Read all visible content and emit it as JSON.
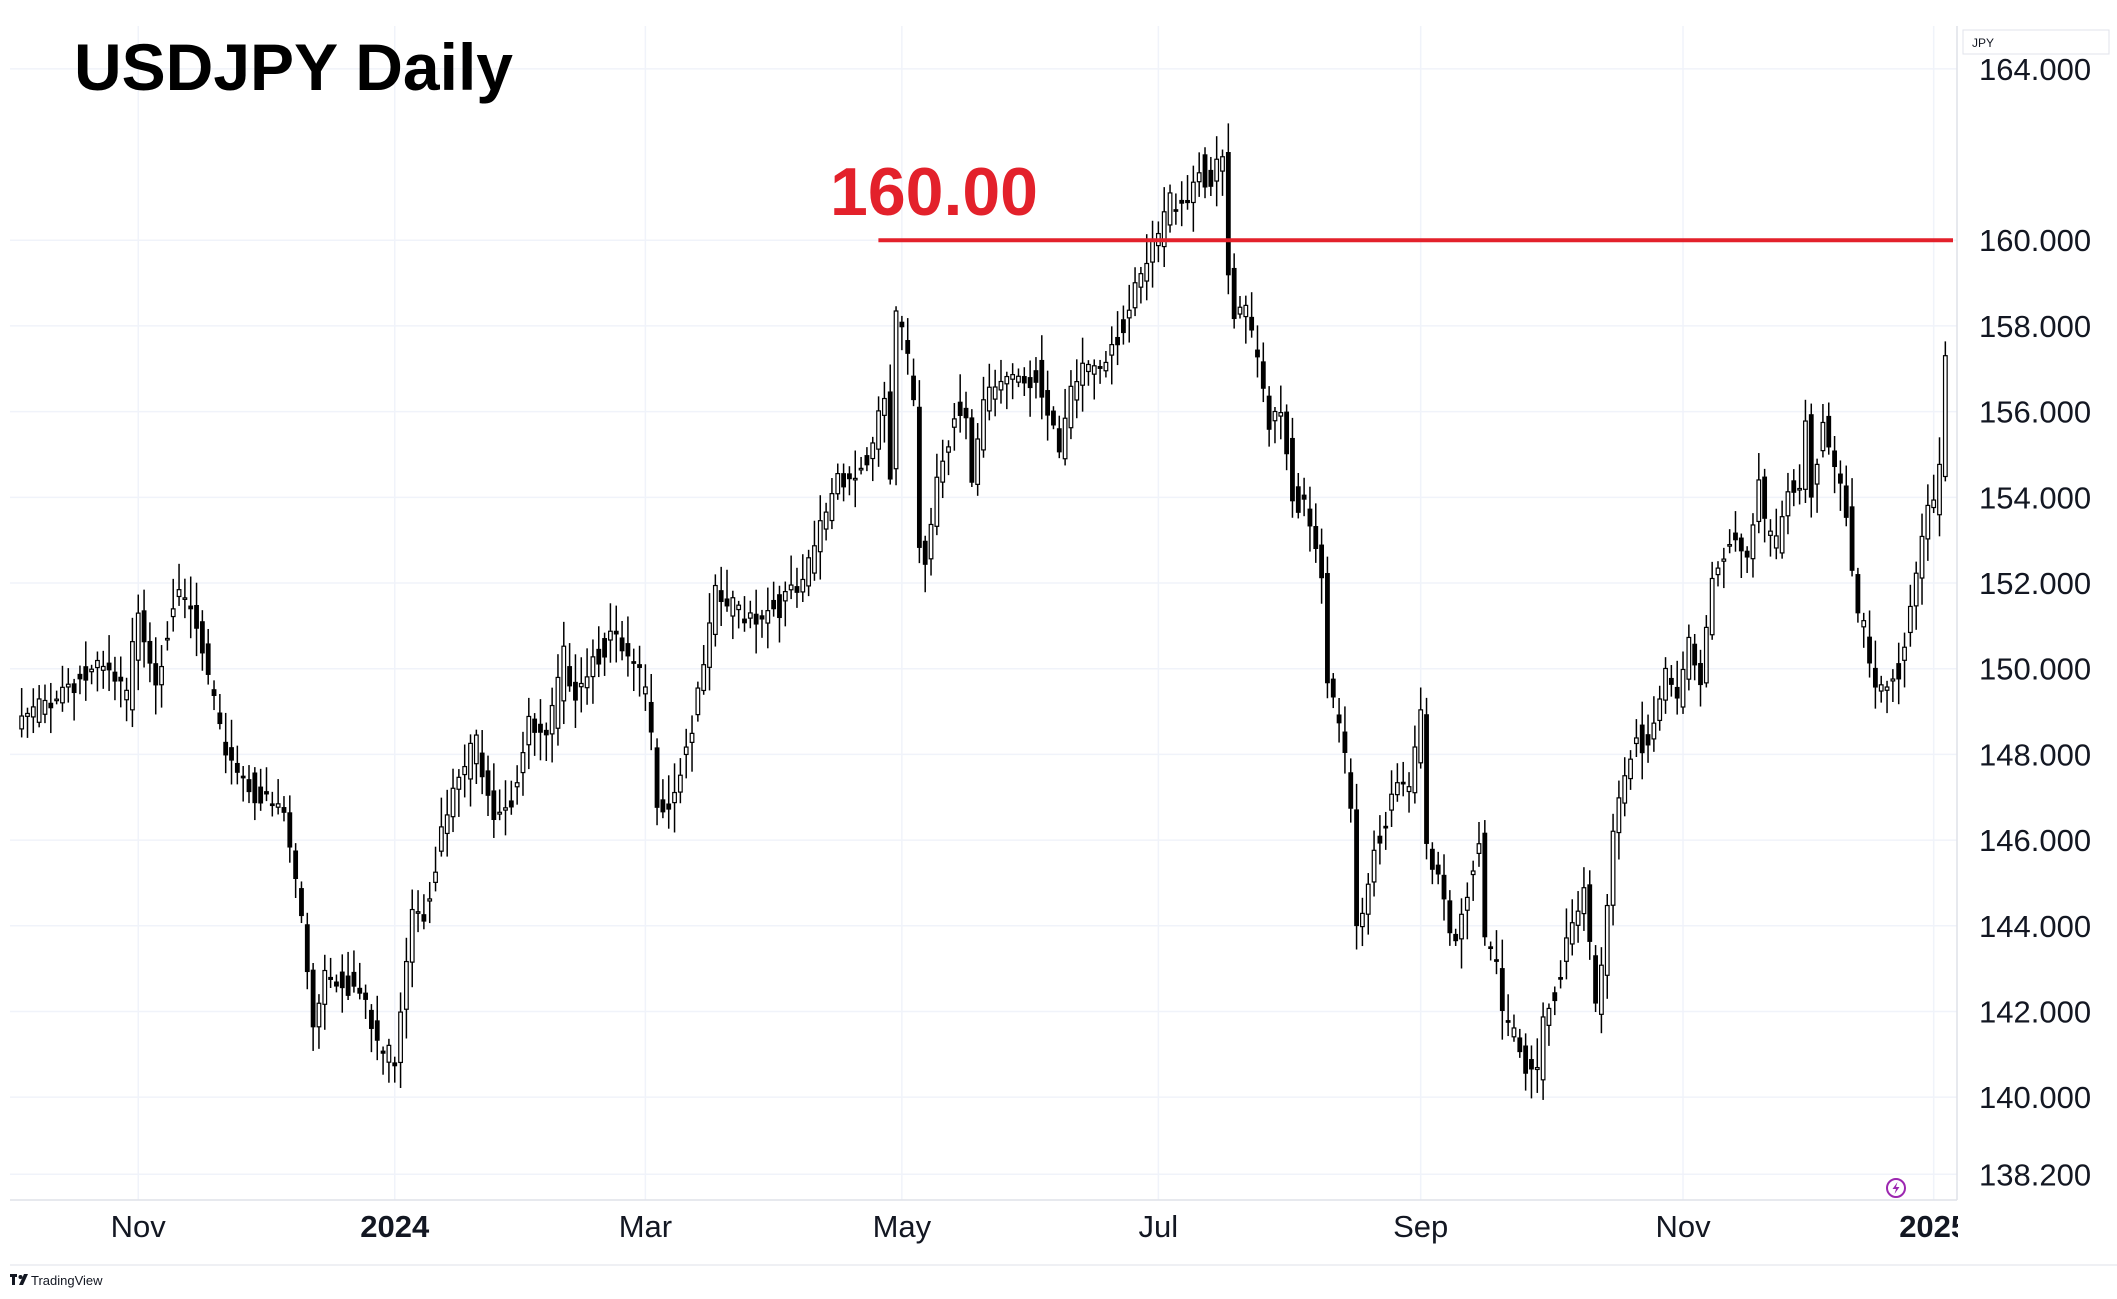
{
  "title": "USDJPY Daily",
  "currency": "JPY",
  "branding": "TradingView",
  "level": {
    "value": 160.0,
    "label": "160.00",
    "color": "#e3212b"
  },
  "colors": {
    "up_body": "#ffffff",
    "down_body": "#000000",
    "wick": "#000000",
    "grid": "#f0f3fa"
  },
  "chart_data": {
    "type": "candlestick",
    "title": "USDJPY Daily",
    "ylim": [
      137.6,
      165.0
    ],
    "yticks": [
      {
        "value": 164.0,
        "label": "164.000"
      },
      {
        "value": 160.0,
        "label": "160.000"
      },
      {
        "value": 158.0,
        "label": "158.000"
      },
      {
        "value": 156.0,
        "label": "156.000"
      },
      {
        "value": 154.0,
        "label": "154.000"
      },
      {
        "value": 152.0,
        "label": "152.000"
      },
      {
        "value": 150.0,
        "label": "150.000"
      },
      {
        "value": 148.0,
        "label": "148.000"
      },
      {
        "value": 146.0,
        "label": "146.000"
      },
      {
        "value": 144.0,
        "label": "144.000"
      },
      {
        "value": 142.0,
        "label": "142.000"
      },
      {
        "value": 140.0,
        "label": "140.000"
      },
      {
        "value": 138.2,
        "label": "138.200"
      }
    ],
    "xticks": [
      {
        "label": "Nov",
        "index": 20,
        "bold": false
      },
      {
        "label": "2024",
        "index": 64,
        "bold": true
      },
      {
        "label": "Mar",
        "index": 107,
        "bold": false
      },
      {
        "label": "May",
        "index": 151,
        "bold": false
      },
      {
        "label": "Jul",
        "index": 195,
        "bold": false
      },
      {
        "label": "Sep",
        "index": 240,
        "bold": false
      },
      {
        "label": "Nov",
        "index": 285,
        "bold": false
      },
      {
        "label": "2025",
        "index": 328,
        "bold": true
      }
    ],
    "xrange": [
      -2,
      332
    ],
    "grid": true,
    "series": [
      {
        "name": "USDJPY",
        "anchors": [
          [
            0,
            148.7
          ],
          [
            8,
            149.7
          ],
          [
            14,
            149.9
          ],
          [
            18,
            149.3
          ],
          [
            20,
            151.5
          ],
          [
            23,
            149.8
          ],
          [
            26,
            151.6
          ],
          [
            29,
            151.3
          ],
          [
            31,
            150.3
          ],
          [
            34,
            148.4
          ],
          [
            38,
            147.5
          ],
          [
            42,
            146.8
          ],
          [
            45,
            146.6
          ],
          [
            48,
            144.2
          ],
          [
            50,
            141.8
          ],
          [
            52,
            143.0
          ],
          [
            55,
            142.8
          ],
          [
            58,
            142.4
          ],
          [
            60,
            141.6
          ],
          [
            62,
            141.0
          ],
          [
            64,
            141.0
          ],
          [
            67,
            144.6
          ],
          [
            69,
            144.4
          ],
          [
            72,
            146.1
          ],
          [
            75,
            147.4
          ],
          [
            78,
            148.3
          ],
          [
            81,
            146.8
          ],
          [
            84,
            147.0
          ],
          [
            87,
            148.6
          ],
          [
            90,
            148.2
          ],
          [
            93,
            150.2
          ],
          [
            95,
            149.6
          ],
          [
            98,
            150.3
          ],
          [
            101,
            150.7
          ],
          [
            104,
            150.1
          ],
          [
            107,
            149.5
          ],
          [
            109,
            147.1
          ],
          [
            111,
            146.9
          ],
          [
            113,
            147.7
          ],
          [
            116,
            149.2
          ],
          [
            119,
            151.6
          ],
          [
            122,
            151.4
          ],
          [
            126,
            151.3
          ],
          [
            131,
            151.6
          ],
          [
            134,
            151.8
          ],
          [
            137,
            153.3
          ],
          [
            140,
            154.6
          ],
          [
            143,
            154.5
          ],
          [
            146,
            155.1
          ],
          [
            148,
            156.3
          ],
          [
            149,
            154.4
          ],
          [
            150,
            158.1
          ],
          [
            151,
            157.8
          ],
          [
            153,
            156.3
          ],
          [
            154,
            153.0
          ],
          [
            155,
            152.7
          ],
          [
            157,
            154.5
          ],
          [
            160,
            156.0
          ],
          [
            162,
            155.7
          ],
          [
            163,
            154.1
          ],
          [
            165,
            156.1
          ],
          [
            168,
            156.8
          ],
          [
            171,
            157.0
          ],
          [
            172,
            156.8
          ],
          [
            174,
            156.9
          ],
          [
            176,
            155.8
          ],
          [
            178,
            154.9
          ],
          [
            180,
            156.3
          ],
          [
            182,
            157.1
          ],
          [
            185,
            157.2
          ],
          [
            187,
            157.7
          ],
          [
            189,
            158.0
          ],
          [
            192,
            159.0
          ],
          [
            194,
            159.7
          ],
          [
            197,
            160.9
          ],
          [
            200,
            161.1
          ],
          [
            202,
            161.7
          ],
          [
            204,
            161.3
          ],
          [
            206,
            161.8
          ],
          [
            207,
            159.1
          ],
          [
            208,
            158.1
          ],
          [
            210,
            158.2
          ],
          [
            212,
            157.2
          ],
          [
            214,
            155.9
          ],
          [
            216,
            156.2
          ],
          [
            218,
            154.1
          ],
          [
            220,
            153.7
          ],
          [
            223,
            152.1
          ],
          [
            224,
            149.5
          ],
          [
            226,
            148.6
          ],
          [
            228,
            146.9
          ],
          [
            229,
            144.1
          ],
          [
            230,
            144.5
          ],
          [
            232,
            145.9
          ],
          [
            234,
            146.5
          ],
          [
            236,
            147.2
          ],
          [
            238,
            147.0
          ],
          [
            240,
            149.0
          ],
          [
            241,
            145.8
          ],
          [
            243,
            145.3
          ],
          [
            245,
            144.0
          ],
          [
            246,
            143.8
          ],
          [
            248,
            144.9
          ],
          [
            250,
            145.9
          ],
          [
            251,
            143.4
          ],
          [
            253,
            142.9
          ],
          [
            254,
            141.9
          ],
          [
            256,
            141.5
          ],
          [
            258,
            140.9
          ],
          [
            260,
            140.7
          ],
          [
            261,
            141.9
          ],
          [
            263,
            142.6
          ],
          [
            265,
            143.5
          ],
          [
            267,
            144.2
          ],
          [
            268,
            144.8
          ],
          [
            270,
            142.1
          ],
          [
            271,
            142.9
          ],
          [
            273,
            146.4
          ],
          [
            275,
            147.7
          ],
          [
            277,
            148.6
          ],
          [
            279,
            148.1
          ],
          [
            282,
            149.7
          ],
          [
            284,
            149.2
          ],
          [
            286,
            150.6
          ],
          [
            288,
            149.8
          ],
          [
            290,
            152.2
          ],
          [
            292,
            152.8
          ],
          [
            294,
            153.0
          ],
          [
            296,
            152.3
          ],
          [
            298,
            154.3
          ],
          [
            299,
            153.2
          ],
          [
            301,
            152.9
          ],
          [
            303,
            154.4
          ],
          [
            305,
            154.3
          ],
          [
            306,
            155.8
          ],
          [
            307,
            154.2
          ],
          [
            309,
            155.6
          ],
          [
            311,
            154.5
          ],
          [
            313,
            153.5
          ],
          [
            315,
            151.0
          ],
          [
            316,
            150.8
          ],
          [
            318,
            149.6
          ],
          [
            320,
            149.8
          ],
          [
            322,
            150.0
          ],
          [
            324,
            151.2
          ],
          [
            326,
            152.8
          ],
          [
            327,
            153.5
          ],
          [
            328,
            153.8
          ],
          [
            329,
            154.5
          ],
          [
            330,
            157.0
          ]
        ]
      }
    ]
  }
}
